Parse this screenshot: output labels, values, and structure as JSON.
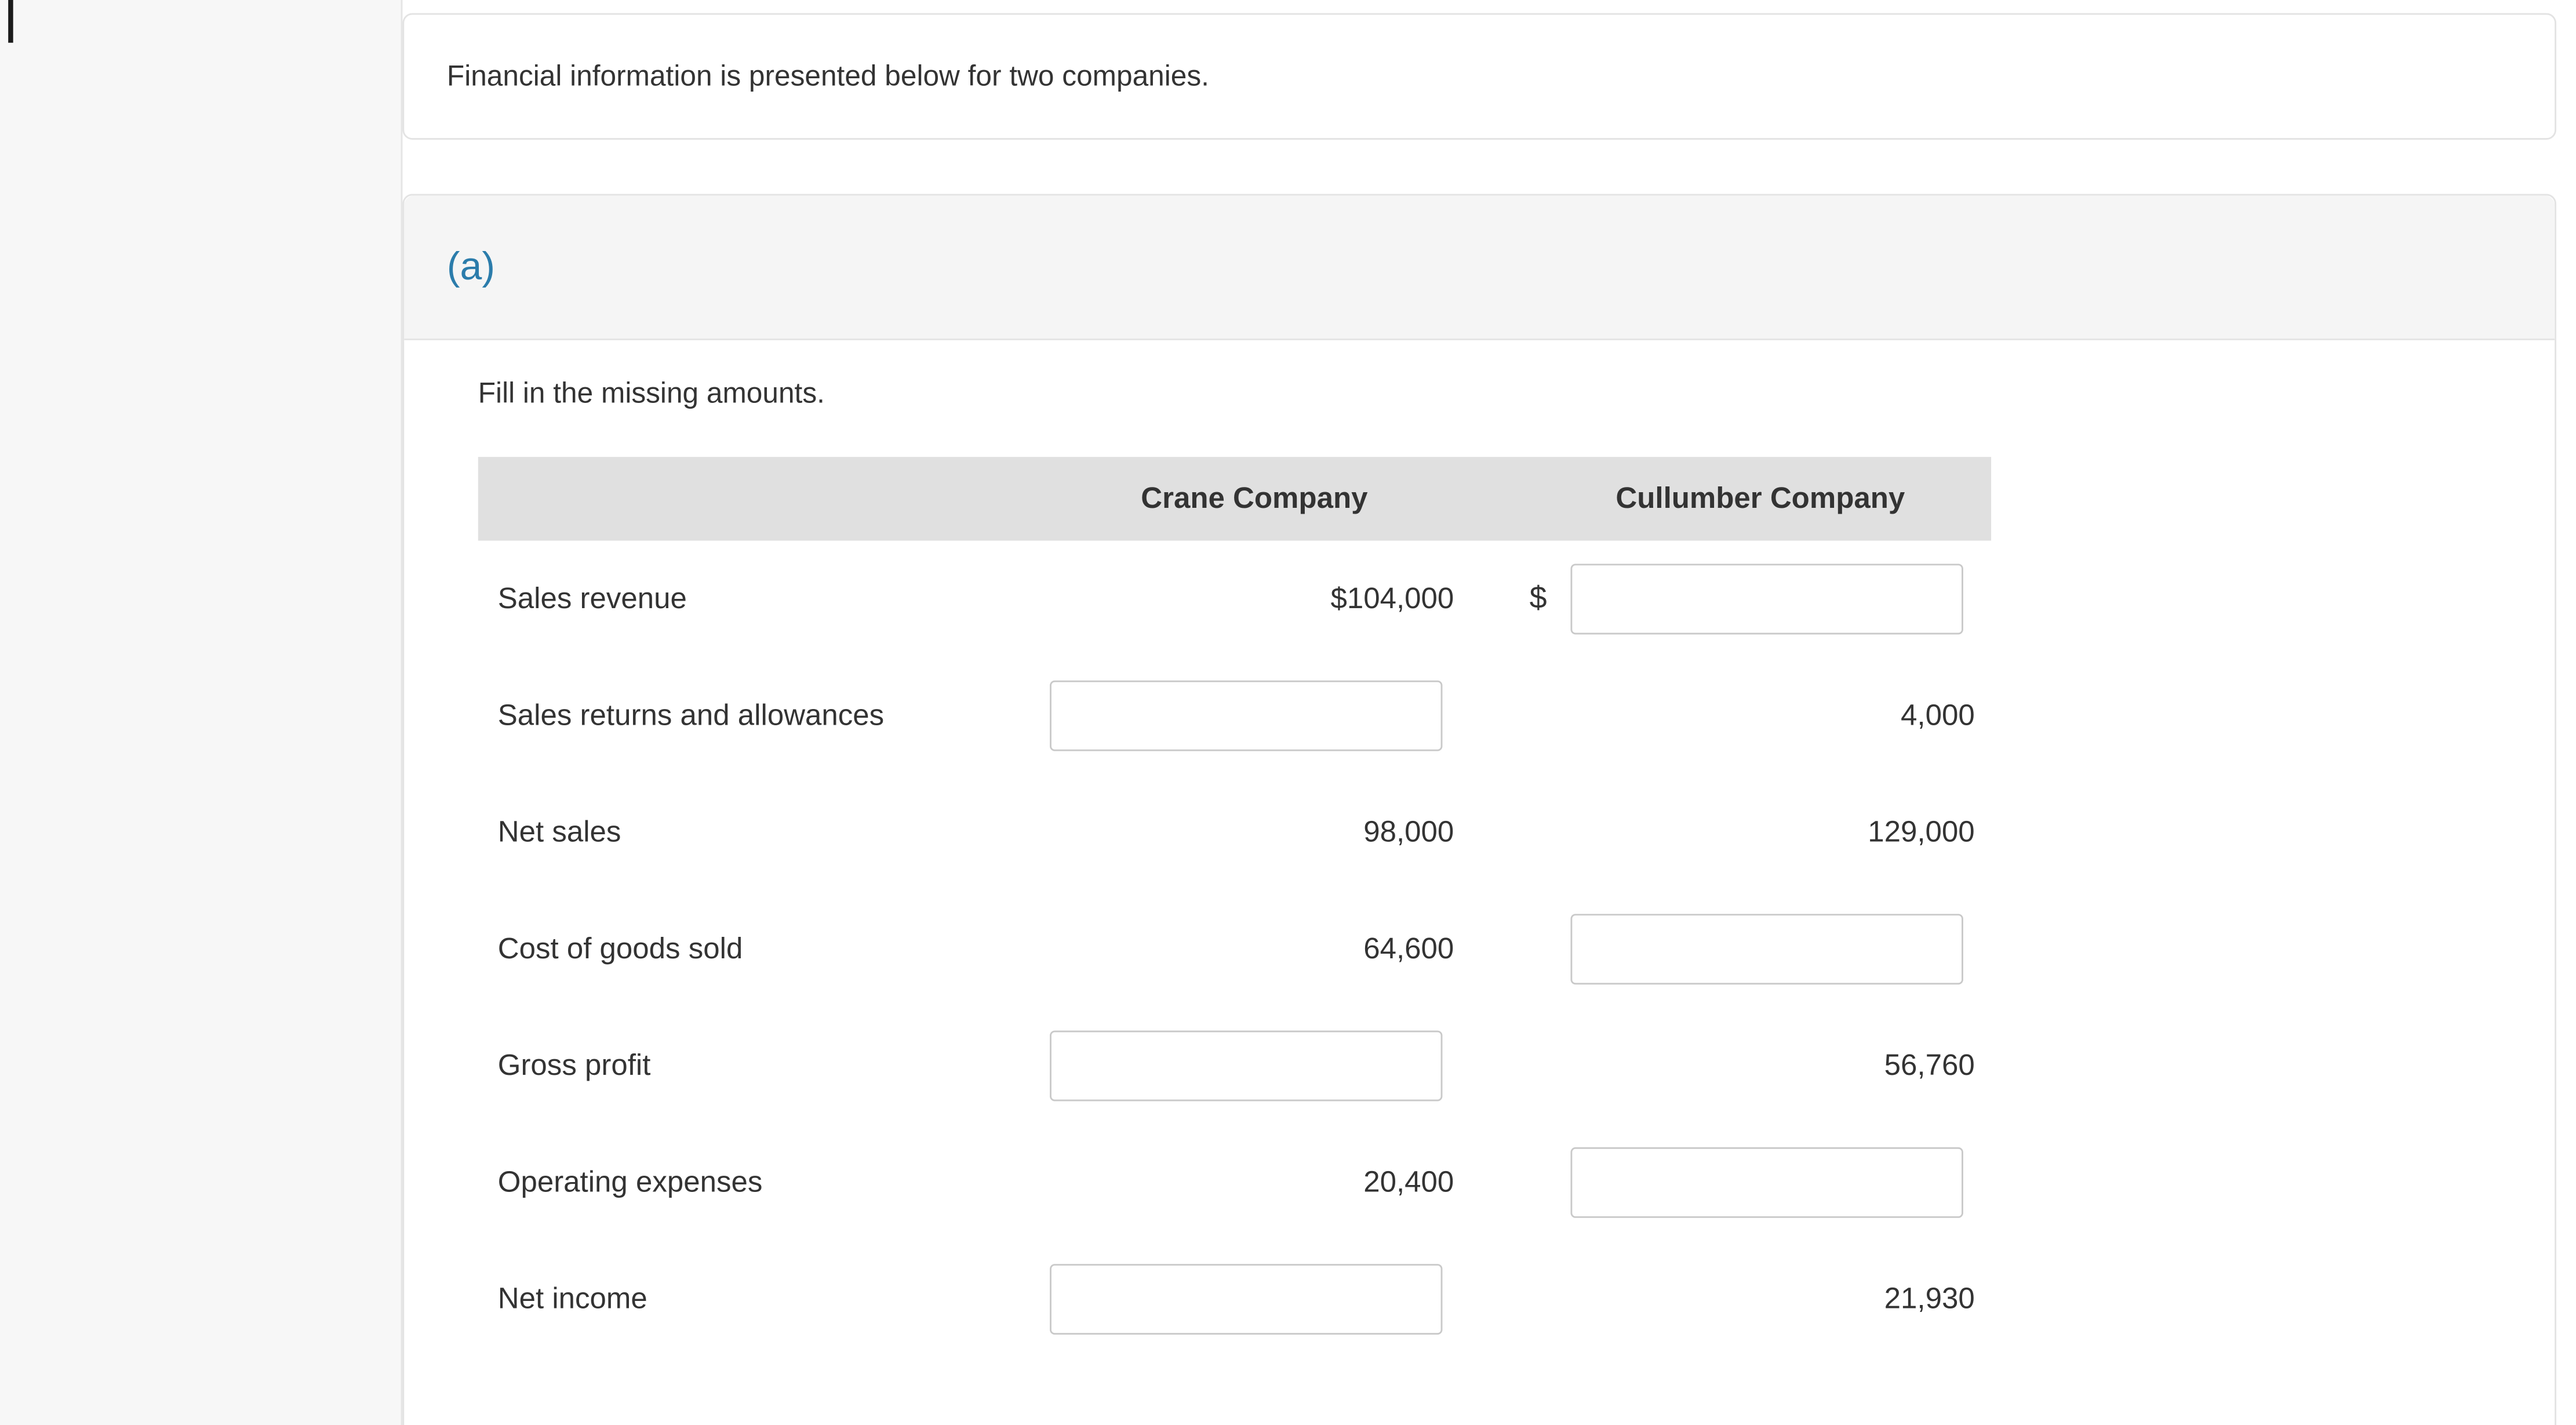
{
  "colors": {
    "accent_blue": "#2b7cab",
    "card_border": "#e3e3e3",
    "section_band_bg": "#f5f5f5",
    "table_header_bg": "#e0e0e0",
    "sidebar_bg": "#f7f7f7",
    "text": "#333333",
    "input_border": "#c9c9c9"
  },
  "intro_card": {
    "text": "Financial information is presented below for two companies."
  },
  "section": {
    "label": "(a)",
    "instruction": "Fill in the missing amounts."
  },
  "table": {
    "currency_symbol": "$",
    "headers": {
      "label_col": "",
      "crane": "Crane Company",
      "cullumber": "Cullumber Company"
    },
    "rows": [
      {
        "label": "Sales revenue",
        "crane": "$104,000",
        "cullumber": ""
      },
      {
        "label": "Sales returns and allowances",
        "crane": "",
        "cullumber": "4,000"
      },
      {
        "label": "Net sales",
        "crane": "98,000",
        "cullumber": "129,000"
      },
      {
        "label": "Cost of goods sold",
        "crane": "64,600",
        "cullumber": ""
      },
      {
        "label": "Gross profit",
        "crane": "",
        "cullumber": "56,760"
      },
      {
        "label": "Operating expenses",
        "crane": "20,400",
        "cullumber": ""
      },
      {
        "label": "Net income",
        "crane": "",
        "cullumber": "21,930"
      }
    ]
  }
}
